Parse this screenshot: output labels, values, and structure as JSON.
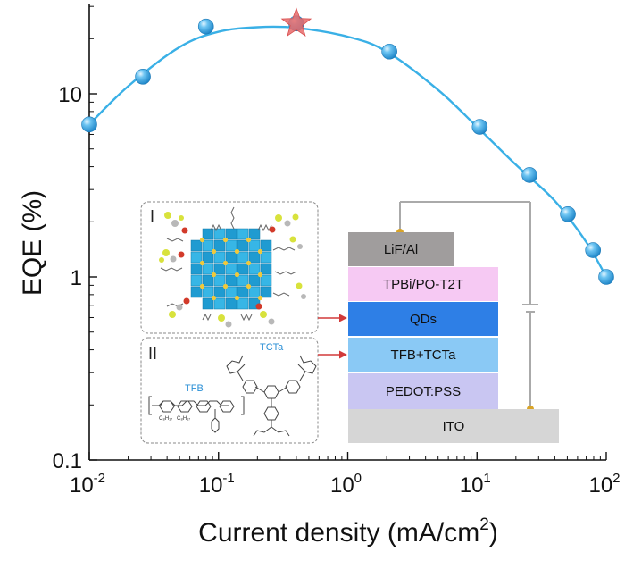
{
  "chart_data": {
    "type": "line",
    "xlabel": "Current density (mA/cm",
    "xlabel_sup": "2",
    "xlabel_close": ")",
    "ylabel": "EQE (%)",
    "x_scale": "log",
    "y_scale": "log",
    "xlim": [
      0.01,
      100
    ],
    "ylim": [
      0.1,
      30
    ],
    "x_ticks": [
      {
        "value": 0.01,
        "base": "10",
        "exp": "-2"
      },
      {
        "value": 0.1,
        "base": "10",
        "exp": "-1"
      },
      {
        "value": 1,
        "base": "10",
        "exp": "0"
      },
      {
        "value": 10,
        "base": "10",
        "exp": "1"
      },
      {
        "value": 100,
        "base": "10",
        "exp": "2"
      }
    ],
    "y_ticks": [
      {
        "value": 0.1,
        "label": "0.1"
      },
      {
        "value": 1,
        "label": "1"
      },
      {
        "value": 10,
        "label": "10"
      }
    ],
    "grid": false,
    "series": [
      {
        "marker": "sphere",
        "color": "#3aa8e4",
        "x": [
          0.01,
          0.026,
          0.08,
          0.4,
          2.1,
          10.5,
          25.5,
          50.5,
          79,
          100
        ],
        "y": [
          6.8,
          12.4,
          23.3,
          24.2,
          17.0,
          6.6,
          3.6,
          2.2,
          1.4,
          1.0
        ]
      }
    ],
    "fit_curve": {
      "color": "#3ab0e6",
      "x": [
        0.01,
        0.02,
        0.05,
        0.1,
        0.2,
        0.4,
        1,
        2,
        5,
        10,
        20,
        40,
        70,
        100
      ],
      "y": [
        6.8,
        11.0,
        18.0,
        21.8,
        23.1,
        22.9,
        20.5,
        17.0,
        10.5,
        6.6,
        4.1,
        2.6,
        1.55,
        1.0
      ]
    },
    "highlight": {
      "x": 0.4,
      "y": 24.2,
      "marker": "star",
      "color": "#e86a6a"
    }
  },
  "inset": {
    "label_i": "I",
    "label_ii": "II",
    "tfb_label": "TFB",
    "tcta_label": "TCTa",
    "tfb_sub1": "C₈H₁₇",
    "tfb_sub2": "C₈H₁₇"
  },
  "device_stack": {
    "layers": [
      {
        "name": "LiF/Al",
        "color": "#a09d9d"
      },
      {
        "name": "TPBi/PO-T2T",
        "color": "#f6c9f3"
      },
      {
        "name": "QDs",
        "color": "#2e7fe6"
      },
      {
        "name": "TFB+TCTa",
        "color": "#8ac9f5"
      },
      {
        "name": "PEDOT:PSS",
        "color": "#c9c6f2"
      },
      {
        "name": "ITO",
        "color": "#d6d6d6"
      }
    ]
  }
}
